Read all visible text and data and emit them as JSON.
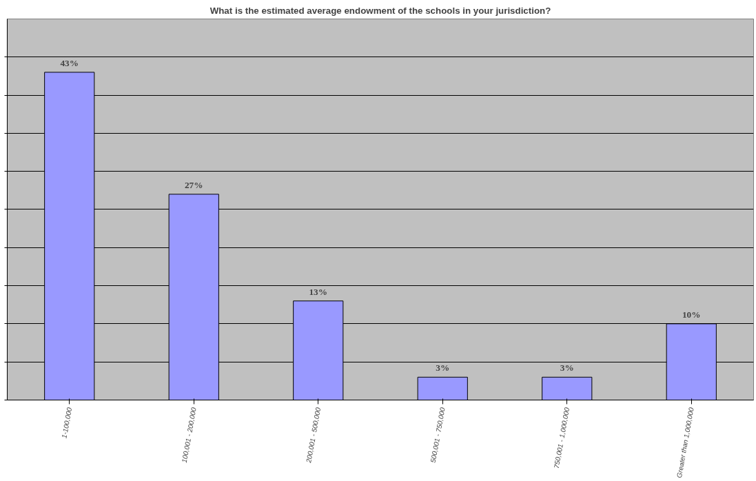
{
  "chart_data": {
    "type": "bar",
    "title": "What is the estimated average endowment of the schools in your jurisdiction?",
    "categories": [
      "1-100,000",
      "100,001 - 200,000",
      "200,001 - 500,000",
      "500,001 - 750,000",
      "750,001 - 1,000,000",
      "Greater than 1,000,000"
    ],
    "values": [
      43,
      27,
      13,
      3,
      3,
      10
    ],
    "value_labels": [
      "43%",
      "27%",
      "13%",
      "3%",
      "3%",
      "10%"
    ],
    "color": "#9999ff",
    "ylim": [
      0,
      45
    ],
    "yticks": [
      {
        "value": 0,
        "label": null
      },
      {
        "value": 5,
        "label": null
      },
      {
        "value": 10,
        "label": null
      },
      {
        "value": 15,
        "label": null
      },
      {
        "value": 20,
        "label": null
      },
      {
        "value": 25,
        "label": null
      },
      {
        "value": 30,
        "label": null
      },
      {
        "value": 35,
        "label": null
      },
      {
        "value": 40,
        "label": null
      },
      {
        "value": 45,
        "label": null
      }
    ],
    "tick_labels": "x",
    "grid": "y"
  }
}
